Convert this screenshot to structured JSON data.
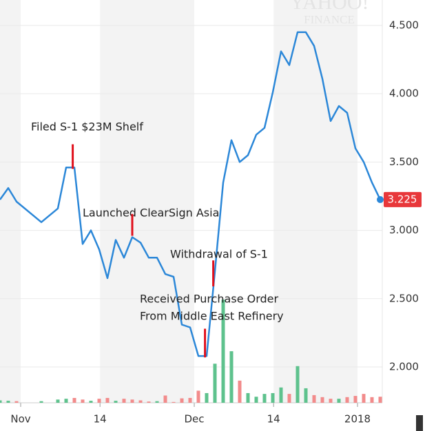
{
  "chart_data": {
    "type": "line",
    "watermark": [
      "YAHOO!",
      "FINANCE"
    ],
    "x": [
      0,
      1,
      2,
      5,
      7,
      8,
      9,
      10,
      11,
      12,
      13,
      14,
      15,
      16,
      17,
      18,
      19,
      20,
      21,
      22,
      23,
      24,
      25,
      26,
      27,
      28,
      29,
      30,
      31,
      32,
      33,
      34,
      35,
      36,
      37,
      38,
      39,
      40,
      41,
      42,
      43,
      44,
      45,
      46
    ],
    "values": [
      3.225,
      3.31,
      3.21,
      3.06,
      3.16,
      3.46,
      3.46,
      2.9,
      3.0,
      2.86,
      2.65,
      2.93,
      2.8,
      2.95,
      2.91,
      2.8,
      2.8,
      2.68,
      2.66,
      2.31,
      2.29,
      2.08,
      2.08,
      2.7,
      3.35,
      3.66,
      3.5,
      3.55,
      3.7,
      3.75,
      4.01,
      4.31,
      4.21,
      4.45,
      4.45,
      4.35,
      4.11,
      3.8,
      3.91,
      3.86,
      3.6,
      3.5,
      3.35,
      3.225
    ],
    "color": "#2b87d8",
    "volume": [
      0.6,
      0.5,
      0.4,
      0.4,
      0.8,
      1.0,
      1.2,
      0.8,
      0.5,
      1.0,
      1.2,
      0.5,
      1.0,
      0.8,
      0.6,
      0.3,
      0.4,
      1.8,
      0.2,
      1.1,
      1.2,
      3.0,
      2.4,
      9.7,
      25.6,
      12.8,
      5.5,
      2.4,
      1.5,
      2.2,
      2.4,
      3.8,
      2.2,
      9.1,
      3.6,
      1.9,
      1.4,
      1.0,
      1.0,
      1.4,
      1.7,
      2.2,
      1.4,
      1.5
    ],
    "volume_colors": [
      "#5ec28d",
      "#5ec28d",
      "#f28b8b",
      "#5ec28d",
      "#5ec28d",
      "#5ec28d",
      "#f28b8b",
      "#f28b8b",
      "#5ec28d",
      "#f28b8b",
      "#f28b8b",
      "#5ec28d",
      "#f28b8b",
      "#f28b8b",
      "#f28b8b",
      "#f28b8b",
      "#5ec28d",
      "#f28b8b",
      "#f28b8b",
      "#f28b8b",
      "#f28b8b",
      "#f28b8b",
      "#5ec28d",
      "#5ec28d",
      "#5ec28d",
      "#5ec28d",
      "#f28b8b",
      "#5ec28d",
      "#5ec28d",
      "#5ec28d",
      "#5ec28d",
      "#5ec28d",
      "#f28b8b",
      "#5ec28d",
      "#5ec28d",
      "#f28b8b",
      "#f28b8b",
      "#f28b8b",
      "#5ec28d",
      "#f28b8b",
      "#f28b8b",
      "#f28b8b",
      "#f28b8b",
      "#f28b8b"
    ],
    "y2lim": [
      0,
      100
    ],
    "xlim": [
      0,
      46.25
    ],
    "xticks": [
      {
        "value": 2.5,
        "label": "Nov"
      },
      {
        "value": 12.1,
        "label": "14"
      },
      {
        "value": 23.5,
        "label": "Dec"
      },
      {
        "value": 33.1,
        "label": "14"
      },
      {
        "value": 43.25,
        "label": "2018"
      }
    ],
    "ylim": [
      1.738,
      4.686
    ],
    "yticks": [
      {
        "value": 2.0,
        "label": "2.000"
      },
      {
        "value": 2.5,
        "label": "2.500"
      },
      {
        "value": 3.0,
        "label": "3.000"
      },
      {
        "value": 3.5,
        "label": "3.500"
      },
      {
        "value": 4.0,
        "label": "4.000"
      },
      {
        "value": 4.5,
        "label": "4.500"
      }
    ],
    "grid": true,
    "last_label_color": "#e8373a",
    "annotations": [
      {
        "lines": [
          "Filed S-1 $23M Shelf"
        ],
        "x": 8.8,
        "y": [
          3.45,
          3.63
        ]
      },
      {
        "lines": [
          "Launched ClearSign Asia"
        ],
        "x": 16,
        "y": [
          2.96,
          3.12
        ]
      },
      {
        "lines": [
          "Withdrawal of S-1"
        ],
        "x": 25.8,
        "y": [
          2.59,
          2.78
        ]
      },
      {
        "lines": [
          "Received Purchase Order",
          "From Middle East Refinery"
        ],
        "x": 24.8,
        "y": [
          2.07,
          2.28
        ]
      }
    ],
    "annotation_color": "#e0101c"
  }
}
